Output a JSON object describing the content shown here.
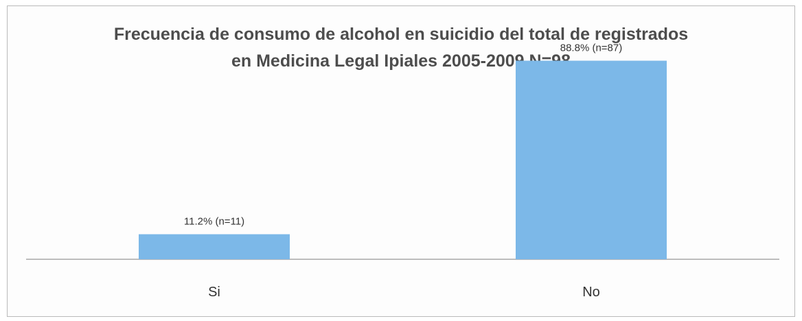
{
  "chart_data": {
    "type": "bar",
    "title_lines": [
      "Frecuencia de consumo de alcohol en suicidio del total de registrados",
      "en Medicina Legal Ipiales 2005-2009  N=98"
    ],
    "categories": [
      "Si",
      "No"
    ],
    "values": [
      11.2,
      88.8
    ],
    "data_labels": [
      "11.2% (n=11)",
      "88.8% (n=87)"
    ],
    "xlabel": "",
    "ylabel": "",
    "ylim": [
      0,
      100
    ],
    "grid": false,
    "legend": "none",
    "bar_color": "#7cb8e8"
  }
}
